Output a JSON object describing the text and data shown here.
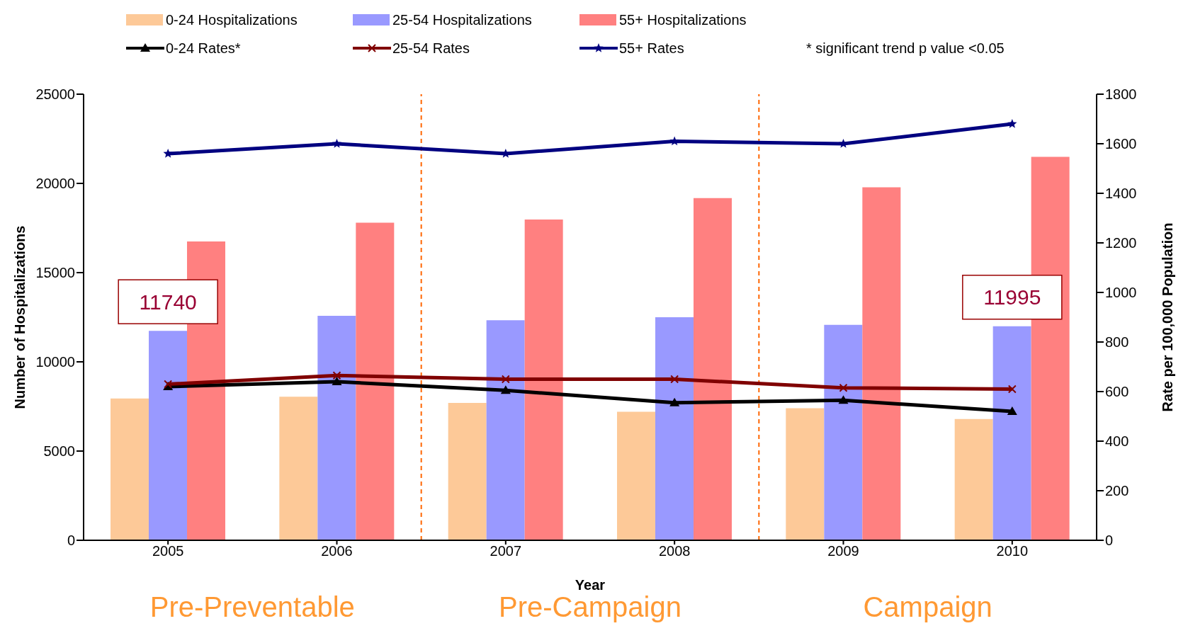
{
  "chart_data": {
    "type": "bar",
    "xlabel": "Year",
    "ylabel": "Number of Hospitalizations",
    "y2label": "Rate per 100,000 Population",
    "x": [
      2005,
      2006,
      2007,
      2008,
      2009,
      2010
    ],
    "xlim": [
      2004.5,
      2010.5
    ],
    "xticks": [
      2005,
      2006,
      2007,
      2008,
      2009,
      2010
    ],
    "ylim": [
      0,
      25000
    ],
    "yticks": [
      0,
      5000,
      10000,
      15000,
      20000,
      25000
    ],
    "y2lim": [
      0,
      1800
    ],
    "y2ticks": [
      0,
      200,
      400,
      600,
      800,
      1000,
      1200,
      1400,
      1600,
      1800
    ],
    "series": [
      {
        "name": "0-24 Hospitalizations",
        "color": "#fdc998",
        "values": [
          7950,
          8050,
          7700,
          7200,
          7400,
          6800
        ]
      },
      {
        "name": "25-54 Hospitalizations",
        "color": "#9999ff",
        "values": [
          11740,
          12580,
          12330,
          12500,
          12070,
          11995
        ]
      },
      {
        "name": "55+ Hospitalizations",
        "color": "#ff8080",
        "values": [
          16750,
          17800,
          17980,
          19180,
          19780,
          21490
        ]
      },
      {
        "name": "0-24 Rates*",
        "type": "line",
        "axis": "y2",
        "color": "#000000",
        "marker": "triangle",
        "values": [
          620,
          640,
          605,
          555,
          565,
          520
        ]
      },
      {
        "name": "25-54 Rates",
        "type": "line",
        "axis": "y2",
        "color": "#800000",
        "marker": "cross",
        "values": [
          630,
          665,
          650,
          650,
          615,
          610
        ]
      },
      {
        "name": "55+ Rates",
        "type": "line",
        "axis": "y2",
        "color": "#000080",
        "marker": "star",
        "values": [
          1560,
          1600,
          1560,
          1610,
          1600,
          1680
        ]
      }
    ],
    "ref_lines": [
      {
        "axis": "x",
        "value": 2006.5,
        "color": "#ff6600",
        "line_style": "dashed"
      },
      {
        "axis": "x",
        "value": 2008.5,
        "color": "#ff6600",
        "line_style": "dashed"
      }
    ],
    "annotations": [
      "* significant trend p value <0.05",
      {
        "text": "11740",
        "x": 2005,
        "y": 11740
      },
      {
        "text": "11995",
        "x": 2010,
        "y": 11995
      },
      "Pre-Preventable",
      "Pre-Campaign",
      "Campaign"
    ],
    "legend": "top",
    "line_style": "solid"
  }
}
